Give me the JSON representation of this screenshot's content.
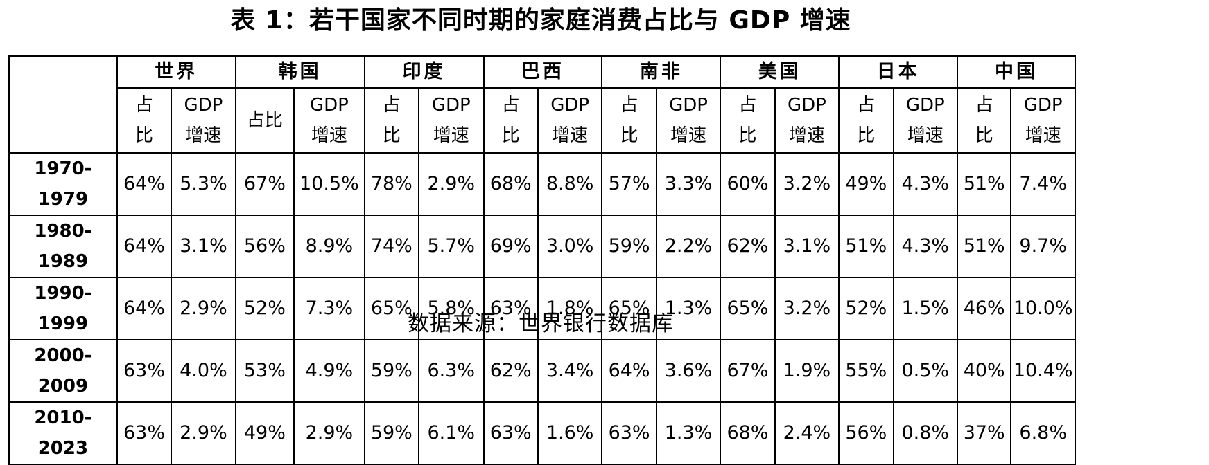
{
  "title": "表 1：若干国家不同时期的家庭消费占比与 GDP 增速",
  "source": "数据来源：世界银行数据库",
  "table": {
    "countries": [
      "世界",
      "韩国",
      "印度",
      "巴西",
      "南非",
      "美国",
      "日本",
      "中国"
    ],
    "sub_headers": {
      "share_lines": [
        "占",
        "比"
      ],
      "share_inline": "占比",
      "gdp_lines": [
        "GDP",
        "增速"
      ]
    },
    "rows": [
      {
        "period": "1970-1979",
        "values": [
          "64%",
          "5.3%",
          "67%",
          "10.5%",
          "78%",
          "2.9%",
          "68%",
          "8.8%",
          "57%",
          "3.3%",
          "60%",
          "3.2%",
          "49%",
          "4.3%",
          "51%",
          "7.4%"
        ]
      },
      {
        "period": "1980-1989",
        "values": [
          "64%",
          "3.1%",
          "56%",
          "8.9%",
          "74%",
          "5.7%",
          "69%",
          "3.0%",
          "59%",
          "2.2%",
          "62%",
          "3.1%",
          "51%",
          "4.3%",
          "51%",
          "9.7%"
        ]
      },
      {
        "period": "1990-1999",
        "values": [
          "64%",
          "2.9%",
          "52%",
          "7.3%",
          "65%",
          "5.8%",
          "63%",
          "1.8%",
          "65%",
          "1.3%",
          "65%",
          "3.2%",
          "52%",
          "1.5%",
          "46%",
          "10.0%"
        ]
      },
      {
        "period": "2000-2009",
        "values": [
          "63%",
          "4.0%",
          "53%",
          "4.9%",
          "59%",
          "6.3%",
          "62%",
          "3.4%",
          "64%",
          "3.6%",
          "67%",
          "1.9%",
          "55%",
          "0.5%",
          "40%",
          "10.4%"
        ]
      },
      {
        "period": "2010-2023",
        "values": [
          "63%",
          "2.9%",
          "49%",
          "2.9%",
          "59%",
          "6.1%",
          "63%",
          "1.6%",
          "63%",
          "1.3%",
          "68%",
          "2.4%",
          "56%",
          "0.8%",
          "37%",
          "6.8%"
        ]
      }
    ]
  }
}
